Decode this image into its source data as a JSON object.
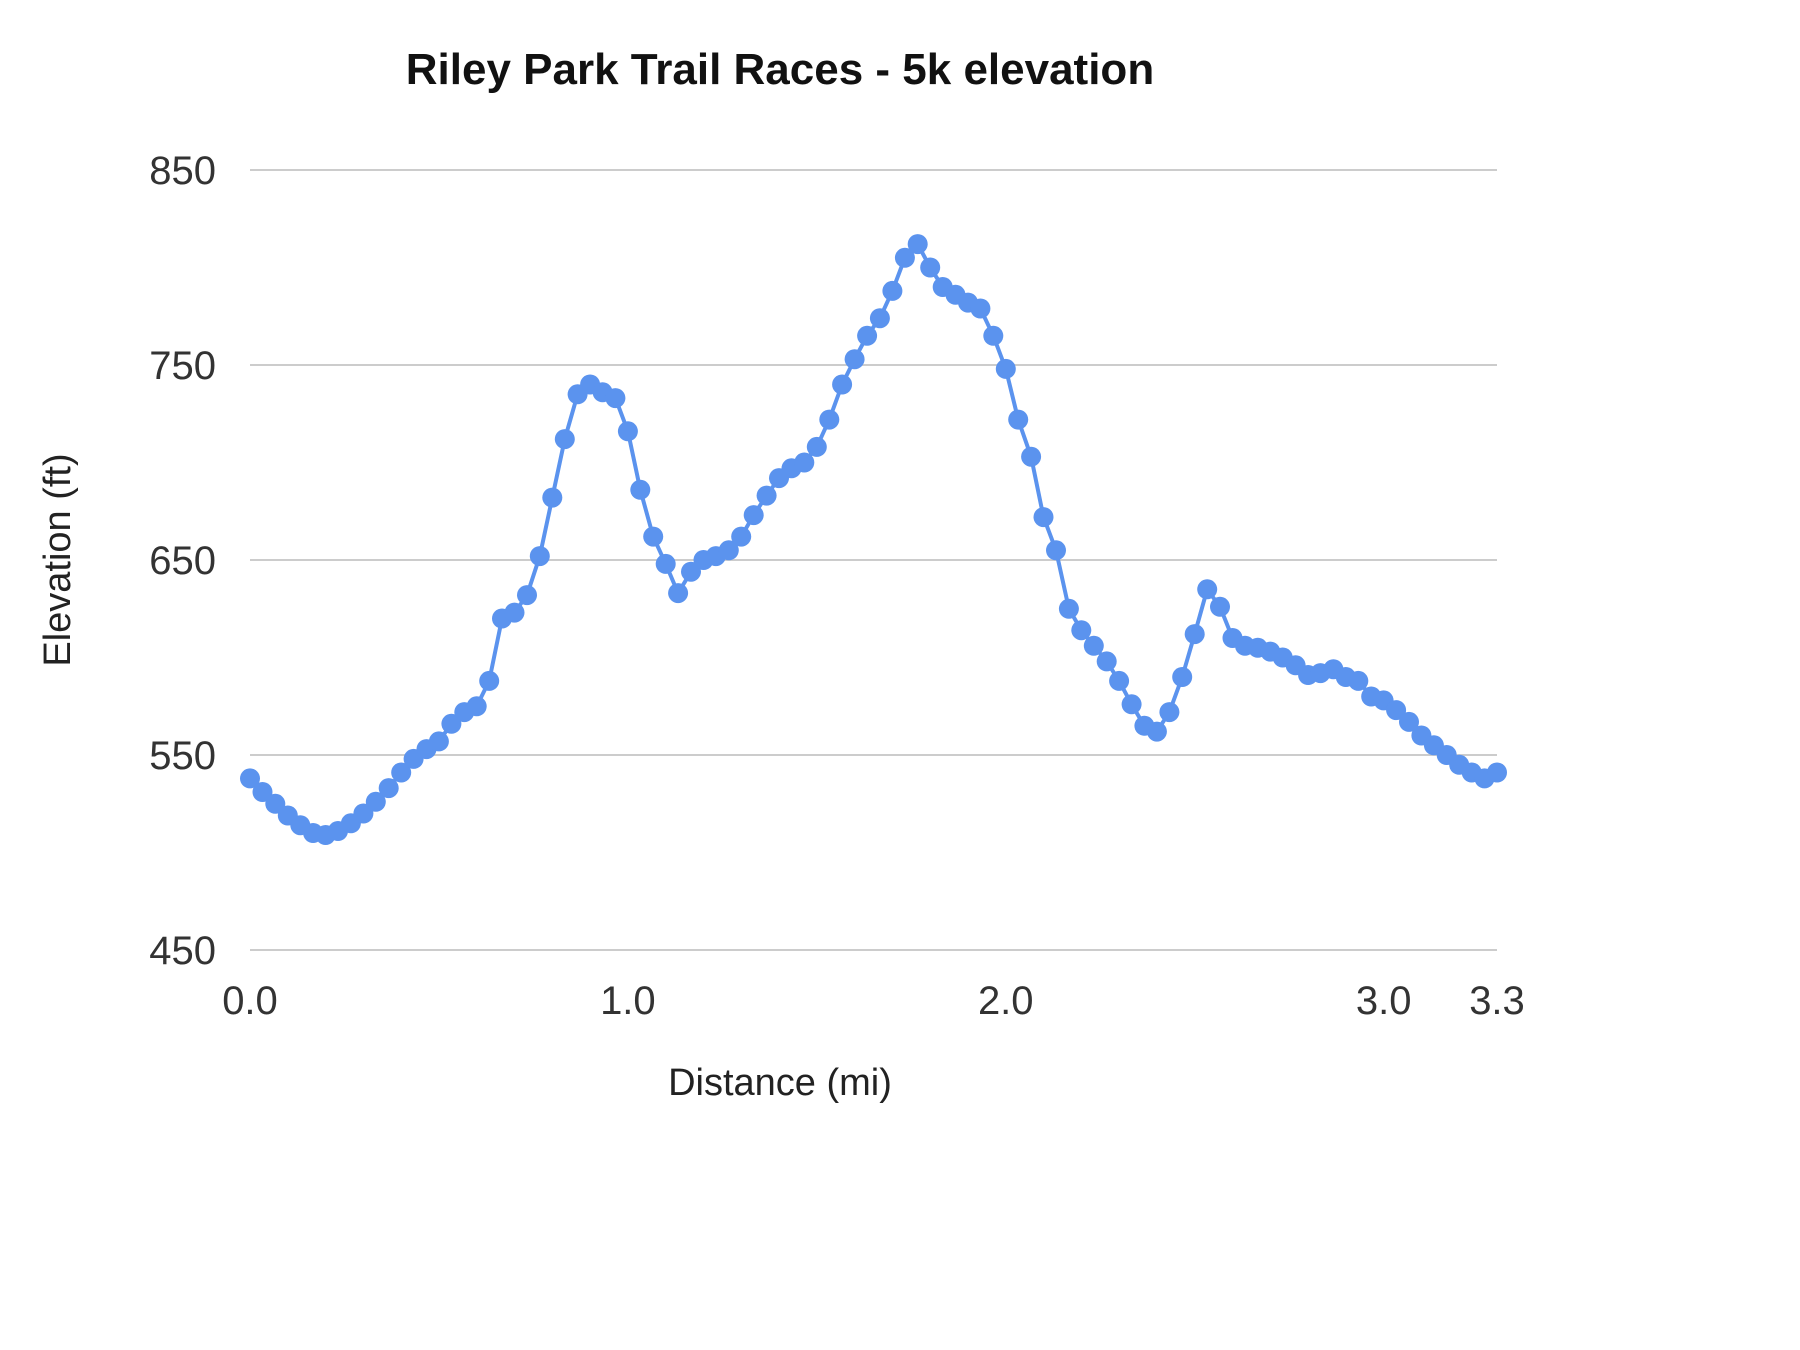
{
  "chart_data": {
    "type": "line",
    "title": "Riley Park Trail Races - 5k elevation",
    "xlabel": "Distance (mi)",
    "ylabel": "Elevation (ft)",
    "xlim": [
      0,
      3.3
    ],
    "ylim": [
      450,
      850
    ],
    "grid": "horizontal",
    "legend_position": "none",
    "background_color": "#ffffff",
    "gridline_color": "#cccccc",
    "xticks": {
      "values": [
        0.0,
        1.0,
        2.0,
        3.0,
        3.3
      ],
      "labels": [
        "0.0",
        "1.0",
        "2.0",
        "3.0",
        "3.3"
      ]
    },
    "yticks": {
      "values": [
        450,
        550,
        650,
        750,
        850
      ],
      "labels": [
        "450",
        "550",
        "650",
        "750",
        "850"
      ]
    },
    "series": [
      {
        "name": "elevation",
        "color": "#5b93ee",
        "line_width": 4,
        "marker": "circle",
        "marker_radius": 10,
        "x": [
          0.0,
          0.033,
          0.067,
          0.1,
          0.133,
          0.167,
          0.2,
          0.233,
          0.267,
          0.3,
          0.333,
          0.367,
          0.4,
          0.433,
          0.467,
          0.5,
          0.533,
          0.567,
          0.6,
          0.633,
          0.667,
          0.7,
          0.733,
          0.767,
          0.8,
          0.833,
          0.867,
          0.9,
          0.933,
          0.967,
          1.0,
          1.033,
          1.067,
          1.1,
          1.133,
          1.167,
          1.2,
          1.233,
          1.267,
          1.3,
          1.333,
          1.367,
          1.4,
          1.433,
          1.467,
          1.5,
          1.533,
          1.567,
          1.6,
          1.633,
          1.667,
          1.7,
          1.733,
          1.767,
          1.8,
          1.833,
          1.867,
          1.9,
          1.933,
          1.967,
          2.0,
          2.033,
          2.067,
          2.1,
          2.133,
          2.167,
          2.2,
          2.233,
          2.267,
          2.3,
          2.333,
          2.367,
          2.4,
          2.433,
          2.467,
          2.5,
          2.533,
          2.567,
          2.6,
          2.633,
          2.667,
          2.7,
          2.733,
          2.767,
          2.8,
          2.833,
          2.867,
          2.9,
          2.933,
          2.967,
          3.0,
          3.033,
          3.067,
          3.1,
          3.133,
          3.167,
          3.2,
          3.233,
          3.267,
          3.3
        ],
        "y": [
          538,
          531,
          525,
          519,
          514,
          510,
          509,
          511,
          515,
          520,
          526,
          533,
          541,
          548,
          553,
          557,
          566,
          572,
          575,
          588,
          620,
          623,
          632,
          652,
          682,
          712,
          735,
          740,
          736,
          733,
          716,
          686,
          662,
          648,
          633,
          644,
          650,
          652,
          655,
          662,
          673,
          683,
          692,
          697,
          700,
          708,
          722,
          740,
          753,
          765,
          774,
          788,
          805,
          812,
          800,
          790,
          786,
          782,
          779,
          765,
          748,
          722,
          703,
          672,
          655,
          625,
          614,
          606,
          598,
          588,
          576,
          565,
          562,
          572,
          590,
          612,
          635,
          626,
          610,
          606,
          605,
          603,
          600,
          596,
          591,
          592,
          594,
          590,
          588,
          580,
          578,
          573,
          567,
          560,
          555,
          550,
          545,
          541,
          538,
          541
        ]
      }
    ]
  }
}
